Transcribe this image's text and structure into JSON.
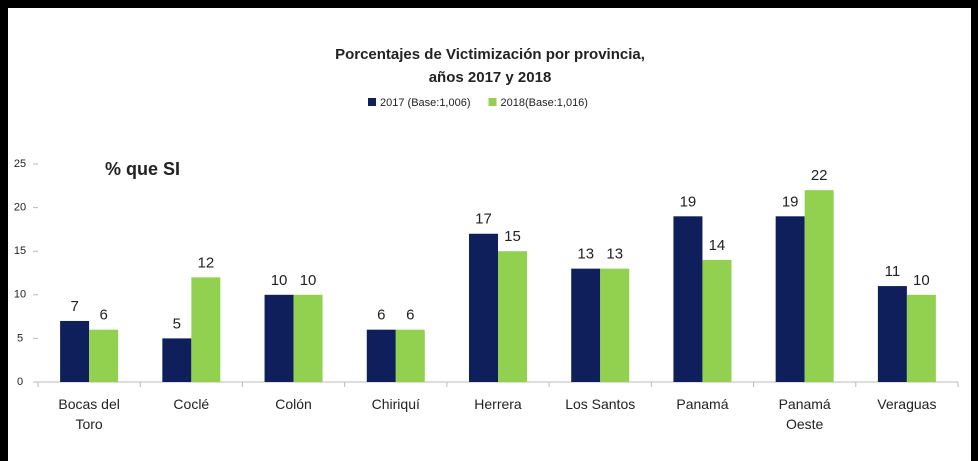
{
  "chart_data": {
    "type": "bar",
    "title": [
      "Porcentajes de Victimización por provincia,",
      "años 2017 y 2018"
    ],
    "annotation": "% que SI",
    "categories": [
      "Bocas del Toro",
      "Coclé",
      "Colón",
      "Chiriquí",
      "Herrera",
      "Los Santos",
      "Panamá",
      "Panamá Oeste",
      "Veraguas"
    ],
    "series": [
      {
        "name": "2017 (Base:1,006)",
        "color": "#0e1f5b",
        "values": [
          7,
          5,
          10,
          6,
          17,
          13,
          19,
          19,
          11
        ]
      },
      {
        "name": "2018(Base:1,016)",
        "color": "#92d050",
        "values": [
          6,
          12,
          10,
          6,
          15,
          13,
          14,
          22,
          10
        ]
      }
    ],
    "ylim": [
      0,
      25
    ],
    "yticks": [
      0,
      5,
      10,
      15,
      20,
      25
    ],
    "grid": false,
    "legend": "top"
  }
}
